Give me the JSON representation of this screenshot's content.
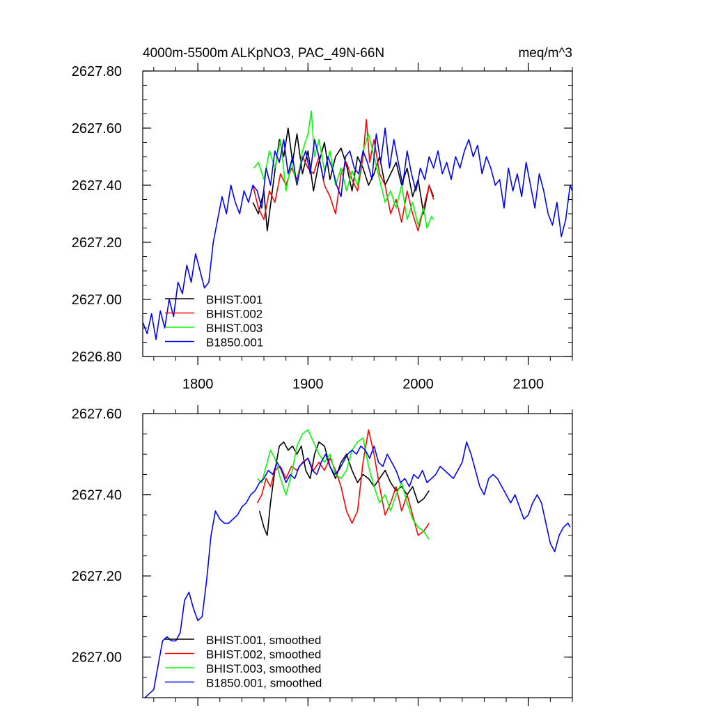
{
  "header": {
    "left": "4000m-5500m ALKpNO3, PAC_49N-66N",
    "right": "meq/m^3"
  },
  "colors": {
    "BHIST.001": "#000000",
    "BHIST.002": "#ff0000",
    "BHIST.003": "#00ff00",
    "B1850.001": "#0000ff"
  },
  "chart_data": [
    {
      "type": "line",
      "title": "4000m-5500m ALKpNO3, PAC_49N-66N",
      "units": "meq/m^3",
      "xlim": [
        1750,
        2140
      ],
      "ylim": [
        2626.8,
        2627.8
      ],
      "xticks": [
        1800,
        1900,
        2000,
        2100
      ],
      "xtick_labels": [
        "1800",
        "1900",
        "2000",
        "2100"
      ],
      "yticks": [
        2626.8,
        2627.0,
        2627.2,
        2627.4,
        2627.6,
        2627.8
      ],
      "ytick_labels": [
        "2626.80",
        "2627.00",
        "2627.20",
        "2627.40",
        "2627.60",
        "2627.80"
      ],
      "legend_position": "bottom-left",
      "series": [
        {
          "name": "BHIST.001",
          "color": "#000000",
          "x": [
            1850,
            1855,
            1860,
            1863,
            1866,
            1870,
            1874,
            1878,
            1882,
            1886,
            1890,
            1895,
            1900,
            1905,
            1910,
            1915,
            1920,
            1925,
            1930,
            1935,
            1940,
            1945,
            1950,
            1955,
            1960,
            1965,
            1970,
            1975,
            1980,
            1985,
            1990,
            1995,
            2000,
            2005,
            2010,
            2014
          ],
          "y": [
            2627.34,
            2627.3,
            2627.38,
            2627.24,
            2627.33,
            2627.45,
            2627.56,
            2627.5,
            2627.6,
            2627.48,
            2627.58,
            2627.44,
            2627.52,
            2627.38,
            2627.48,
            2627.55,
            2627.42,
            2627.5,
            2627.53,
            2627.47,
            2627.38,
            2627.5,
            2627.46,
            2627.4,
            2627.44,
            2627.5,
            2627.4,
            2627.44,
            2627.48,
            2627.4,
            2627.46,
            2627.36,
            2627.42,
            2627.3,
            2627.4,
            2627.36
          ]
        },
        {
          "name": "BHIST.002",
          "color": "#ff0000",
          "x": [
            1850,
            1855,
            1860,
            1865,
            1870,
            1875,
            1880,
            1885,
            1890,
            1895,
            1900,
            1905,
            1910,
            1915,
            1920,
            1925,
            1930,
            1935,
            1940,
            1945,
            1950,
            1953,
            1956,
            1960,
            1965,
            1970,
            1975,
            1980,
            1985,
            1990,
            1995,
            2000,
            2005,
            2010,
            2014
          ],
          "y": [
            2627.4,
            2627.32,
            2627.28,
            2627.38,
            2627.34,
            2627.44,
            2627.4,
            2627.46,
            2627.42,
            2627.5,
            2627.46,
            2627.44,
            2627.5,
            2627.4,
            2627.36,
            2627.3,
            2627.44,
            2627.48,
            2627.42,
            2627.38,
            2627.5,
            2627.63,
            2627.48,
            2627.56,
            2627.44,
            2627.4,
            2627.3,
            2627.35,
            2627.27,
            2627.38,
            2627.3,
            2627.24,
            2627.32,
            2627.4,
            2627.35
          ]
        },
        {
          "name": "BHIST.003",
          "color": "#00ff00",
          "x": [
            1851,
            1855,
            1860,
            1865,
            1870,
            1875,
            1880,
            1885,
            1890,
            1895,
            1900,
            1903,
            1906,
            1910,
            1915,
            1920,
            1925,
            1930,
            1935,
            1940,
            1945,
            1950,
            1955,
            1960,
            1965,
            1970,
            1975,
            1980,
            1985,
            1990,
            1995,
            2000,
            2005,
            2008,
            2012,
            2014
          ],
          "y": [
            2627.46,
            2627.48,
            2627.42,
            2627.52,
            2627.46,
            2627.56,
            2627.38,
            2627.48,
            2627.4,
            2627.52,
            2627.58,
            2627.66,
            2627.5,
            2627.56,
            2627.45,
            2627.52,
            2627.4,
            2627.46,
            2627.38,
            2627.45,
            2627.4,
            2627.52,
            2627.58,
            2627.5,
            2627.42,
            2627.34,
            2627.38,
            2627.32,
            2627.4,
            2627.28,
            2627.34,
            2627.26,
            2627.32,
            2627.25,
            2627.29,
            2627.28
          ]
        },
        {
          "name": "B1850.001",
          "color": "#0000ff",
          "x": [
            1750,
            1754,
            1758,
            1762,
            1766,
            1770,
            1774,
            1778,
            1782,
            1786,
            1790,
            1794,
            1798,
            1802,
            1806,
            1810,
            1814,
            1818,
            1822,
            1826,
            1830,
            1834,
            1838,
            1842,
            1846,
            1850,
            1854,
            1858,
            1862,
            1866,
            1870,
            1874,
            1878,
            1882,
            1886,
            1890,
            1894,
            1898,
            1902,
            1906,
            1910,
            1914,
            1918,
            1922,
            1926,
            1930,
            1934,
            1938,
            1942,
            1946,
            1950,
            1954,
            1958,
            1962,
            1966,
            1970,
            1974,
            1978,
            1982,
            1986,
            1990,
            1994,
            1998,
            2002,
            2006,
            2010,
            2014,
            2018,
            2022,
            2026,
            2030,
            2034,
            2038,
            2042,
            2046,
            2050,
            2054,
            2058,
            2062,
            2066,
            2070,
            2074,
            2078,
            2082,
            2086,
            2090,
            2094,
            2098,
            2102,
            2106,
            2110,
            2114,
            2118,
            2122,
            2126,
            2130,
            2134,
            2138,
            2140
          ],
          "y": [
            2626.92,
            2626.88,
            2626.95,
            2626.86,
            2626.96,
            2626.9,
            2627.0,
            2626.94,
            2627.06,
            2627.02,
            2627.12,
            2627.06,
            2627.16,
            2627.1,
            2627.04,
            2627.06,
            2627.2,
            2627.28,
            2627.36,
            2627.3,
            2627.4,
            2627.34,
            2627.3,
            2627.38,
            2627.34,
            2627.4,
            2627.38,
            2627.32,
            2627.46,
            2627.4,
            2627.52,
            2627.48,
            2627.56,
            2627.44,
            2627.5,
            2627.4,
            2627.48,
            2627.52,
            2627.44,
            2627.56,
            2627.5,
            2627.42,
            2627.5,
            2627.46,
            2627.4,
            2627.36,
            2627.5,
            2627.52,
            2627.46,
            2627.44,
            2627.52,
            2627.48,
            2627.42,
            2627.58,
            2627.48,
            2627.6,
            2627.46,
            2627.56,
            2627.48,
            2627.4,
            2627.52,
            2627.44,
            2627.38,
            2627.46,
            2627.42,
            2627.5,
            2627.46,
            2627.52,
            2627.44,
            2627.48,
            2627.42,
            2627.5,
            2627.46,
            2627.52,
            2627.56,
            2627.5,
            2627.54,
            2627.44,
            2627.5,
            2627.46,
            2627.4,
            2627.42,
            2627.32,
            2627.46,
            2627.38,
            2627.44,
            2627.36,
            2627.48,
            2627.4,
            2627.32,
            2627.44,
            2627.38,
            2627.3,
            2627.26,
            2627.34,
            2627.22,
            2627.28,
            2627.4,
            2627.38
          ]
        }
      ]
    },
    {
      "type": "line",
      "xlim": [
        1750,
        2140
      ],
      "ylim": [
        2626.9,
        2627.6
      ],
      "xticks": [
        1800,
        1900,
        2000,
        2100
      ],
      "yticks": [
        2627.0,
        2627.2,
        2627.4,
        2627.6
      ],
      "ytick_labels": [
        "2627.00",
        "2627.20",
        "2627.40",
        "2627.60"
      ],
      "legend_position": "bottom-left",
      "series": [
        {
          "name": "BHIST.001, smoothed",
          "color": "#000000",
          "x": [
            1856,
            1860,
            1863,
            1866,
            1870,
            1874,
            1878,
            1882,
            1886,
            1890,
            1894,
            1898,
            1902,
            1906,
            1910,
            1915,
            1920,
            1925,
            1930,
            1935,
            1940,
            1945,
            1950,
            1955,
            1960,
            1965,
            1970,
            1975,
            1980,
            1985,
            1990,
            1995,
            2000,
            2005,
            2010
          ],
          "y": [
            2627.36,
            2627.32,
            2627.3,
            2627.38,
            2627.46,
            2627.52,
            2627.53,
            2627.51,
            2627.52,
            2627.5,
            2627.52,
            2627.46,
            2627.44,
            2627.5,
            2627.53,
            2627.52,
            2627.47,
            2627.44,
            2627.48,
            2627.5,
            2627.46,
            2627.43,
            2627.45,
            2627.44,
            2627.42,
            2627.44,
            2627.46,
            2627.43,
            2627.41,
            2627.42,
            2627.4,
            2627.42,
            2627.38,
            2627.39,
            2627.41
          ]
        },
        {
          "name": "BHIST.002, smoothed",
          "color": "#ff0000",
          "x": [
            1854,
            1858,
            1862,
            1866,
            1870,
            1875,
            1880,
            1885,
            1890,
            1895,
            1900,
            1905,
            1910,
            1915,
            1920,
            1925,
            1930,
            1935,
            1940,
            1945,
            1950,
            1955,
            1960,
            1965,
            1970,
            1975,
            1980,
            1985,
            1990,
            1995,
            2000,
            2005,
            2010
          ],
          "y": [
            2627.38,
            2627.4,
            2627.44,
            2627.42,
            2627.46,
            2627.47,
            2627.44,
            2627.47,
            2627.46,
            2627.48,
            2627.49,
            2627.46,
            2627.48,
            2627.46,
            2627.49,
            2627.46,
            2627.42,
            2627.36,
            2627.33,
            2627.36,
            2627.48,
            2627.56,
            2627.5,
            2627.42,
            2627.35,
            2627.38,
            2627.42,
            2627.36,
            2627.4,
            2627.35,
            2627.3,
            2627.31,
            2627.33
          ]
        },
        {
          "name": "BHIST.003, smoothed",
          "color": "#00ff00",
          "x": [
            1854,
            1858,
            1862,
            1866,
            1870,
            1875,
            1880,
            1885,
            1890,
            1895,
            1900,
            1905,
            1910,
            1915,
            1920,
            1925,
            1930,
            1935,
            1940,
            1945,
            1950,
            1955,
            1960,
            1965,
            1970,
            1975,
            1980,
            1985,
            1990,
            1995,
            2000,
            2005,
            2010
          ],
          "y": [
            2627.44,
            2627.43,
            2627.47,
            2627.51,
            2627.49,
            2627.44,
            2627.4,
            2627.45,
            2627.52,
            2627.55,
            2627.56,
            2627.53,
            2627.5,
            2627.48,
            2627.5,
            2627.45,
            2627.44,
            2627.46,
            2627.51,
            2627.53,
            2627.54,
            2627.47,
            2627.42,
            2627.38,
            2627.4,
            2627.36,
            2627.4,
            2627.43,
            2627.38,
            2627.34,
            2627.32,
            2627.31,
            2627.29
          ]
        },
        {
          "name": "B1850.001, smoothed",
          "color": "#0000ff",
          "x": [
            1752,
            1756,
            1760,
            1764,
            1768,
            1772,
            1776,
            1780,
            1784,
            1788,
            1792,
            1796,
            1800,
            1804,
            1808,
            1812,
            1816,
            1820,
            1824,
            1828,
            1832,
            1836,
            1840,
            1844,
            1848,
            1852,
            1856,
            1860,
            1864,
            1868,
            1872,
            1876,
            1880,
            1884,
            1888,
            1892,
            1896,
            1900,
            1904,
            1908,
            1912,
            1916,
            1920,
            1924,
            1928,
            1932,
            1936,
            1940,
            1944,
            1948,
            1952,
            1956,
            1960,
            1964,
            1968,
            1972,
            1976,
            1980,
            1984,
            1988,
            1992,
            1996,
            2000,
            2004,
            2008,
            2012,
            2016,
            2020,
            2024,
            2028,
            2032,
            2036,
            2040,
            2044,
            2048,
            2052,
            2056,
            2060,
            2064,
            2068,
            2072,
            2076,
            2080,
            2084,
            2088,
            2092,
            2096,
            2100,
            2104,
            2108,
            2112,
            2116,
            2120,
            2124,
            2128,
            2132,
            2136,
            2138
          ],
          "y": [
            2626.9,
            2626.91,
            2626.92,
            2626.98,
            2627.04,
            2627.05,
            2627.04,
            2627.04,
            2627.06,
            2627.14,
            2627.16,
            2627.12,
            2627.09,
            2627.1,
            2627.19,
            2627.3,
            2627.36,
            2627.34,
            2627.33,
            2627.33,
            2627.34,
            2627.35,
            2627.37,
            2627.38,
            2627.4,
            2627.41,
            2627.43,
            2627.44,
            2627.46,
            2627.45,
            2627.48,
            2627.46,
            2627.43,
            2627.45,
            2627.44,
            2627.47,
            2627.48,
            2627.49,
            2627.46,
            2627.45,
            2627.48,
            2627.5,
            2627.47,
            2627.45,
            2627.46,
            2627.48,
            2627.5,
            2627.51,
            2627.5,
            2627.52,
            2627.51,
            2627.49,
            2627.52,
            2627.48,
            2627.47,
            2627.5,
            2627.48,
            2627.46,
            2627.43,
            2627.44,
            2627.42,
            2627.45,
            2627.44,
            2627.46,
            2627.43,
            2627.44,
            2627.45,
            2627.47,
            2627.46,
            2627.45,
            2627.44,
            2627.46,
            2627.48,
            2627.53,
            2627.5,
            2627.46,
            2627.42,
            2627.4,
            2627.44,
            2627.45,
            2627.44,
            2627.42,
            2627.4,
            2627.38,
            2627.4,
            2627.37,
            2627.34,
            2627.35,
            2627.38,
            2627.4,
            2627.38,
            2627.33,
            2627.28,
            2627.26,
            2627.3,
            2627.32,
            2627.33,
            2627.32
          ]
        }
      ]
    }
  ]
}
